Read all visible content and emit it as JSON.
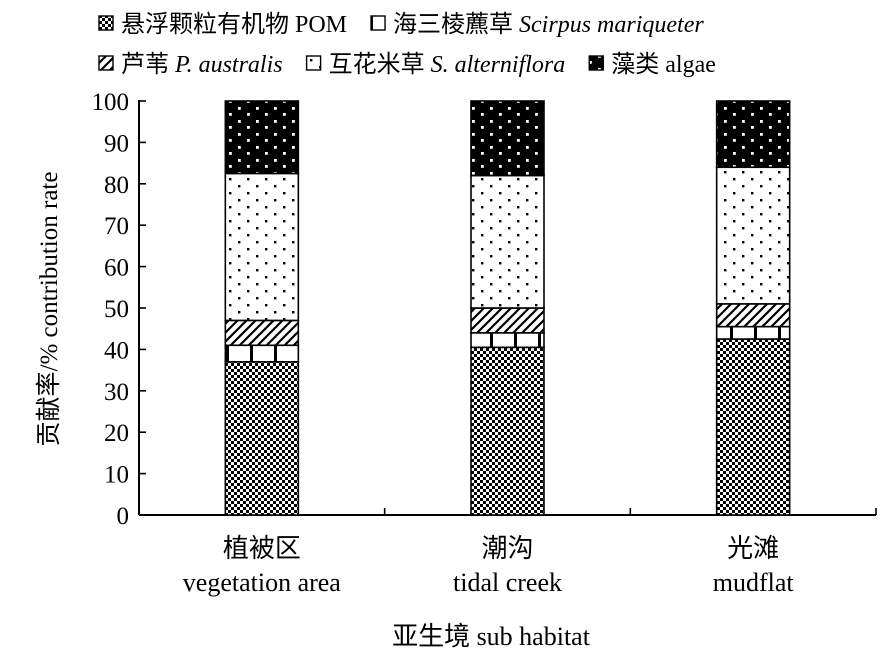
{
  "chart_data": {
    "type": "bar",
    "stacked": true,
    "xlabel": "亚生境 sub habitat",
    "ylabel": "贡献率/% contribution rate",
    "ylim": [
      0,
      100
    ],
    "yticks": [
      0,
      10,
      20,
      30,
      40,
      50,
      60,
      70,
      80,
      90,
      100
    ],
    "grid": false,
    "legend_position": "top",
    "categories": [
      {
        "cn": "植被区",
        "en": "vegetation area"
      },
      {
        "cn": "潮沟",
        "en": "tidal creek"
      },
      {
        "cn": "光滩",
        "en": "mudflat"
      }
    ],
    "series": [
      {
        "key": "pom",
        "cn": "悬浮颗粒有机物",
        "en": "POM",
        "en_italic": false,
        "pattern": "checker",
        "values": [
          37,
          40.5,
          42.5
        ]
      },
      {
        "key": "scirpus",
        "cn": "海三棱藨草",
        "en": "Scirpus mariqueter",
        "en_italic": true,
        "pattern": "vbar",
        "values": [
          4,
          3.5,
          3
        ]
      },
      {
        "key": "phrag",
        "cn": "芦苇",
        "en": "P. australis",
        "en_italic": true,
        "pattern": "diag",
        "values": [
          6,
          6,
          5.5
        ]
      },
      {
        "key": "spart",
        "cn": "互花米草",
        "en": "S. alterniflora",
        "en_italic": true,
        "pattern": "dots",
        "values": [
          35.5,
          32,
          33
        ]
      },
      {
        "key": "algae",
        "cn": "藻类",
        "en": "algae",
        "en_italic": false,
        "pattern": "dark",
        "values": [
          17.5,
          18,
          16
        ]
      }
    ],
    "legend_rows": [
      [
        "pom",
        "scirpus"
      ],
      [
        "phrag",
        "spart",
        "algae"
      ]
    ]
  }
}
